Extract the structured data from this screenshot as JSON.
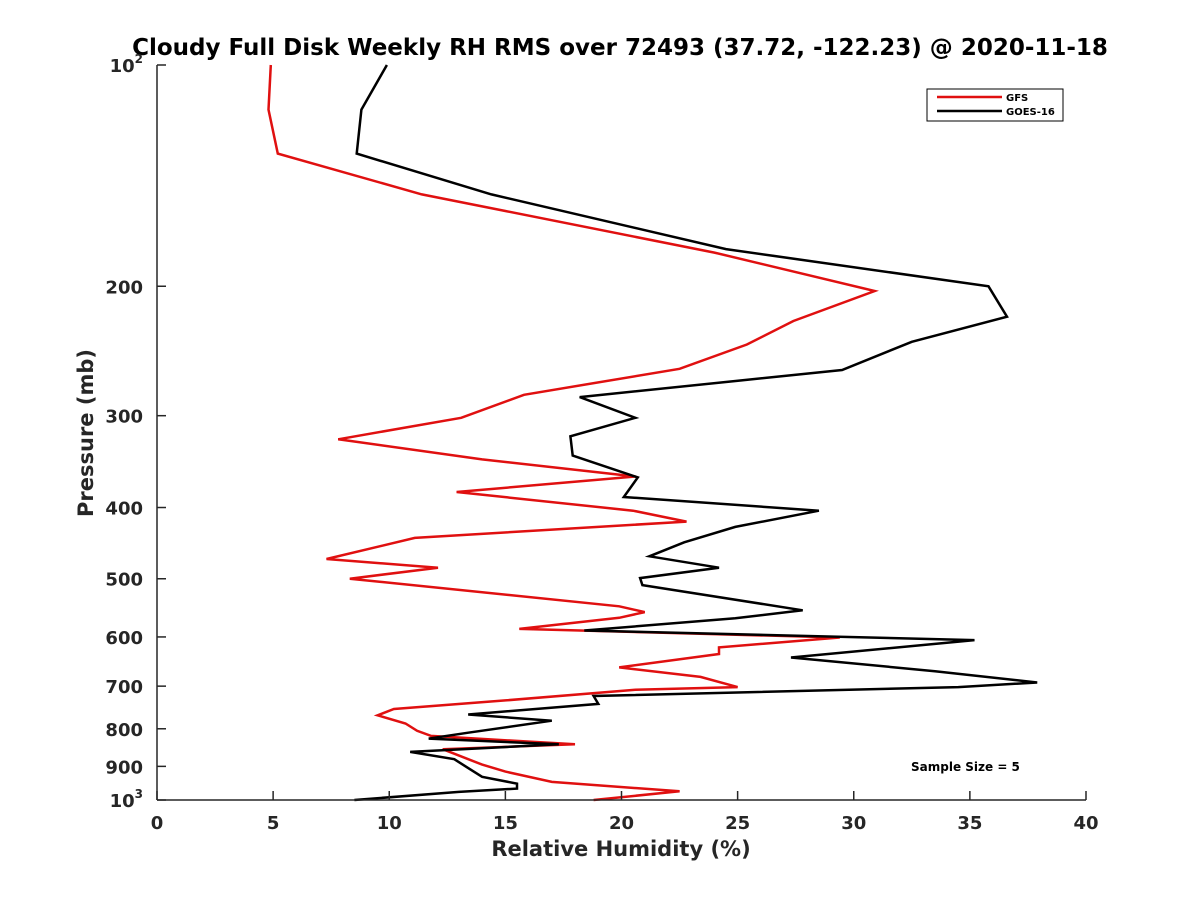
{
  "chart_data": {
    "type": "line",
    "title": "Cloudy Full Disk Weekly RH RMS over 72493 (37.72, -122.23) @ 2020-11-18",
    "xlabel": "Relative Humidity (%)",
    "ylabel": "Pressure (mb)",
    "xlim": [
      0,
      40
    ],
    "ylim": [
      1000,
      100
    ],
    "yscale": "log",
    "x_ticks": [
      "0",
      "5",
      "10",
      "15",
      "20",
      "25",
      "30",
      "35",
      "40"
    ],
    "y_ticks": [
      {
        "value": 100,
        "base": "10",
        "sup": "2"
      },
      {
        "value": 200,
        "label": "200"
      },
      {
        "value": 300,
        "label": "300"
      },
      {
        "value": 400,
        "label": "400"
      },
      {
        "value": 500,
        "label": "500"
      },
      {
        "value": 600,
        "label": "600"
      },
      {
        "value": 700,
        "label": "700"
      },
      {
        "value": 800,
        "label": "800"
      },
      {
        "value": 900,
        "label": "900"
      },
      {
        "value": 1000,
        "base": "10",
        "sup": "3"
      }
    ],
    "grid": false,
    "legend_position": "top-right",
    "annotation": "Sample Size = 5",
    "series": [
      {
        "name": "GFS",
        "color": "#e01010",
        "points": [
          [
            4.9,
            100
          ],
          [
            4.8,
            115
          ],
          [
            5.2,
            132
          ],
          [
            11.4,
            150
          ],
          [
            15,
            158
          ],
          [
            24,
            180
          ],
          [
            30.9,
            203
          ],
          [
            27.4,
            223
          ],
          [
            25.4,
            240
          ],
          [
            22.5,
            259
          ],
          [
            15.8,
            281
          ],
          [
            13.1,
            302
          ],
          [
            7.8,
            323
          ],
          [
            14,
            344
          ],
          [
            20.6,
            363
          ],
          [
            12.9,
            381
          ],
          [
            20.5,
            404
          ],
          [
            22.8,
            418
          ],
          [
            11.1,
            440
          ],
          [
            7.3,
            470
          ],
          [
            12.1,
            483
          ],
          [
            8.3,
            500
          ],
          [
            19.9,
            545
          ],
          [
            21,
            555
          ],
          [
            19.9,
            565
          ],
          [
            15.6,
            585
          ],
          [
            29.4,
            601
          ],
          [
            24.2,
            620
          ],
          [
            24.2,
            633
          ],
          [
            19.9,
            660
          ],
          [
            23.4,
            680
          ],
          [
            25,
            702
          ],
          [
            20.6,
            708
          ],
          [
            15,
            732
          ],
          [
            10.2,
            752
          ],
          [
            9.5,
            767
          ],
          [
            10.7,
            787
          ],
          [
            11.2,
            805
          ],
          [
            11.8,
            818
          ],
          [
            18.0,
            840
          ],
          [
            12.3,
            853
          ],
          [
            14,
            895
          ],
          [
            15,
            915
          ],
          [
            17,
            945
          ],
          [
            22.5,
            973
          ],
          [
            18.8,
            1000
          ]
        ]
      },
      {
        "name": "GOES-16",
        "color": "#000000",
        "points": [
          [
            9.9,
            100
          ],
          [
            8.8,
            115
          ],
          [
            8.6,
            132
          ],
          [
            14.4,
            150
          ],
          [
            24.5,
            178
          ],
          [
            35.8,
            200
          ],
          [
            36.6,
            220
          ],
          [
            32.5,
            238
          ],
          [
            29.5,
            260
          ],
          [
            18.2,
            283
          ],
          [
            20.6,
            302
          ],
          [
            17.8,
            320
          ],
          [
            17.9,
            340
          ],
          [
            20.7,
            364
          ],
          [
            20.1,
            387
          ],
          [
            28.5,
            404
          ],
          [
            24.9,
            425
          ],
          [
            22.7,
            446
          ],
          [
            21.2,
            466
          ],
          [
            24.2,
            483
          ],
          [
            20.8,
            499
          ],
          [
            20.9,
            510
          ],
          [
            27.8,
            552
          ],
          [
            24.9,
            566
          ],
          [
            18.4,
            588
          ],
          [
            35.2,
            606
          ],
          [
            27.3,
            640
          ],
          [
            33.5,
            668
          ],
          [
            37.9,
            692
          ],
          [
            34.5,
            702
          ],
          [
            18.8,
            722
          ],
          [
            19.0,
            740
          ],
          [
            13.4,
            765
          ],
          [
            17,
            780
          ],
          [
            13.4,
            810
          ],
          [
            11.7,
            825
          ],
          [
            17.3,
            840
          ],
          [
            10.9,
            860
          ],
          [
            12.8,
            880
          ],
          [
            13.4,
            905
          ],
          [
            14,
            930
          ],
          [
            15.5,
            950
          ],
          [
            15.5,
            965
          ],
          [
            13,
            975
          ],
          [
            8.5,
            1000
          ]
        ]
      }
    ]
  }
}
